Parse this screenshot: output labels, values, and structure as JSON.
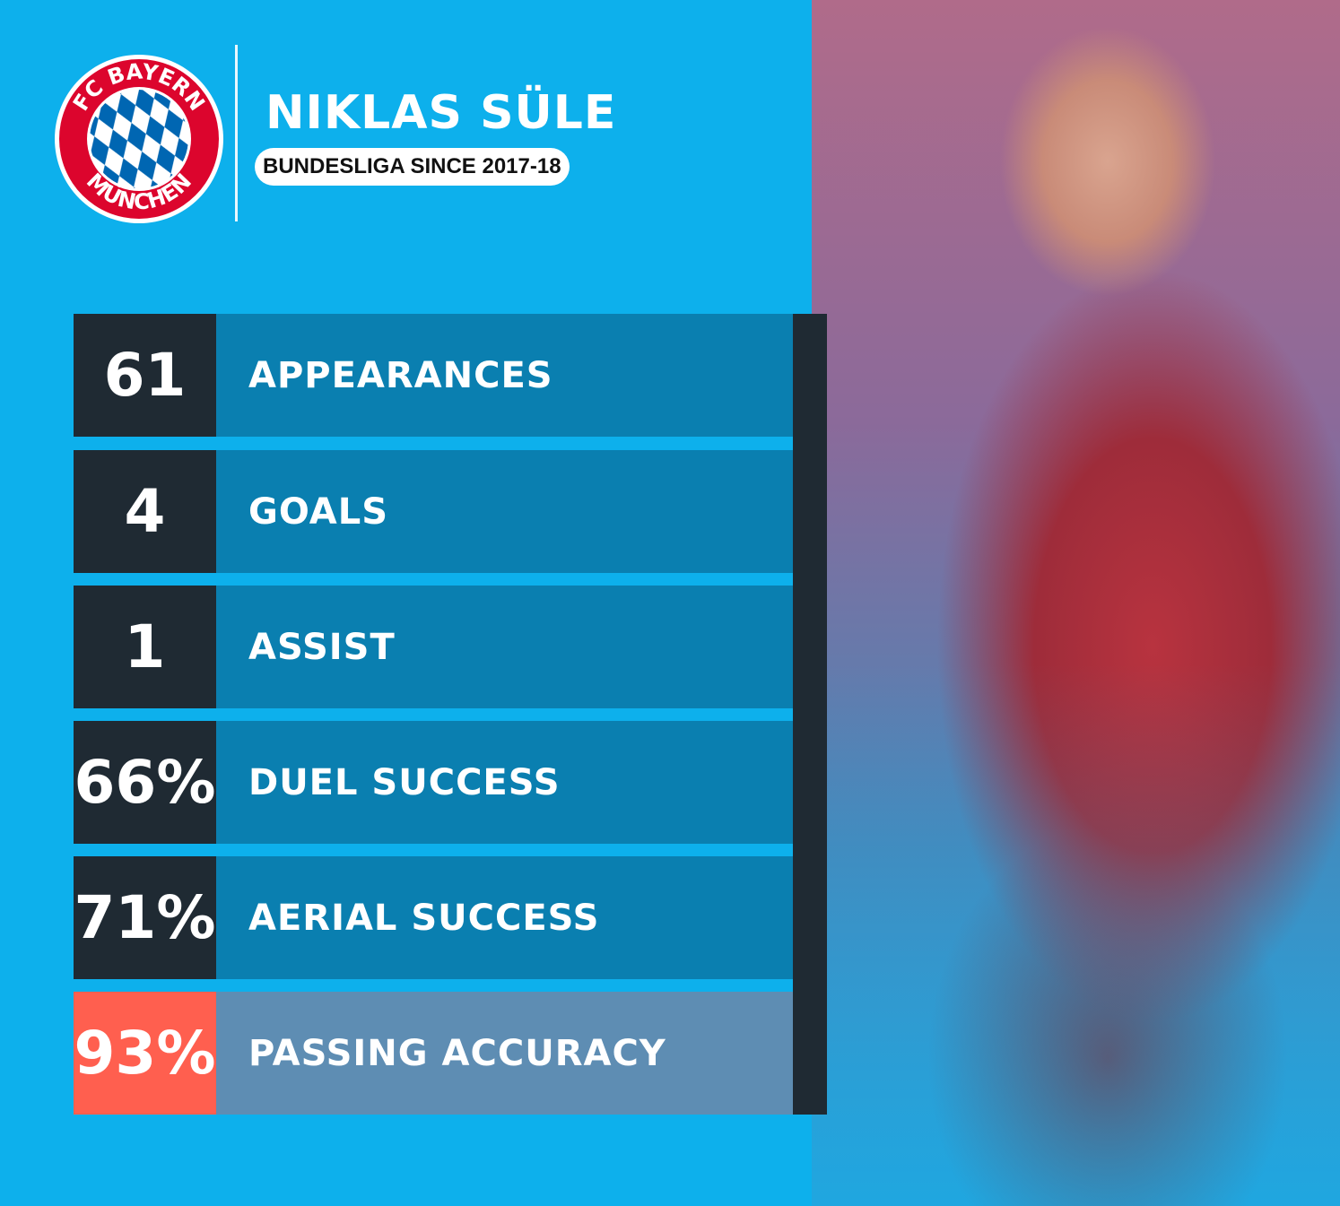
{
  "header": {
    "club": "FC BAYERN MÜNCHEN",
    "player_name": "NIKLAS SÜLE",
    "subtitle": "BUNDESLIGA SINCE 2017-18"
  },
  "stats": [
    {
      "value": "61",
      "label": "APPEARANCES"
    },
    {
      "value": "4",
      "label": "GOALS"
    },
    {
      "value": "1",
      "label": "ASSIST"
    },
    {
      "value": "66%",
      "label": "DUEL SUCCESS"
    },
    {
      "value": "71%",
      "label": "AERIAL SUCCESS"
    },
    {
      "value": "93%",
      "label": "PASSING ACCURACY",
      "highlight": true
    }
  ],
  "colors": {
    "background": "#0db0ec",
    "dark": "#1f2a33",
    "label": "#0a7fb0",
    "highlight": "#ff5f4f",
    "highlight_label": "#5e8db3",
    "club_red": "#dc052d",
    "club_blue": "#0066b2"
  }
}
